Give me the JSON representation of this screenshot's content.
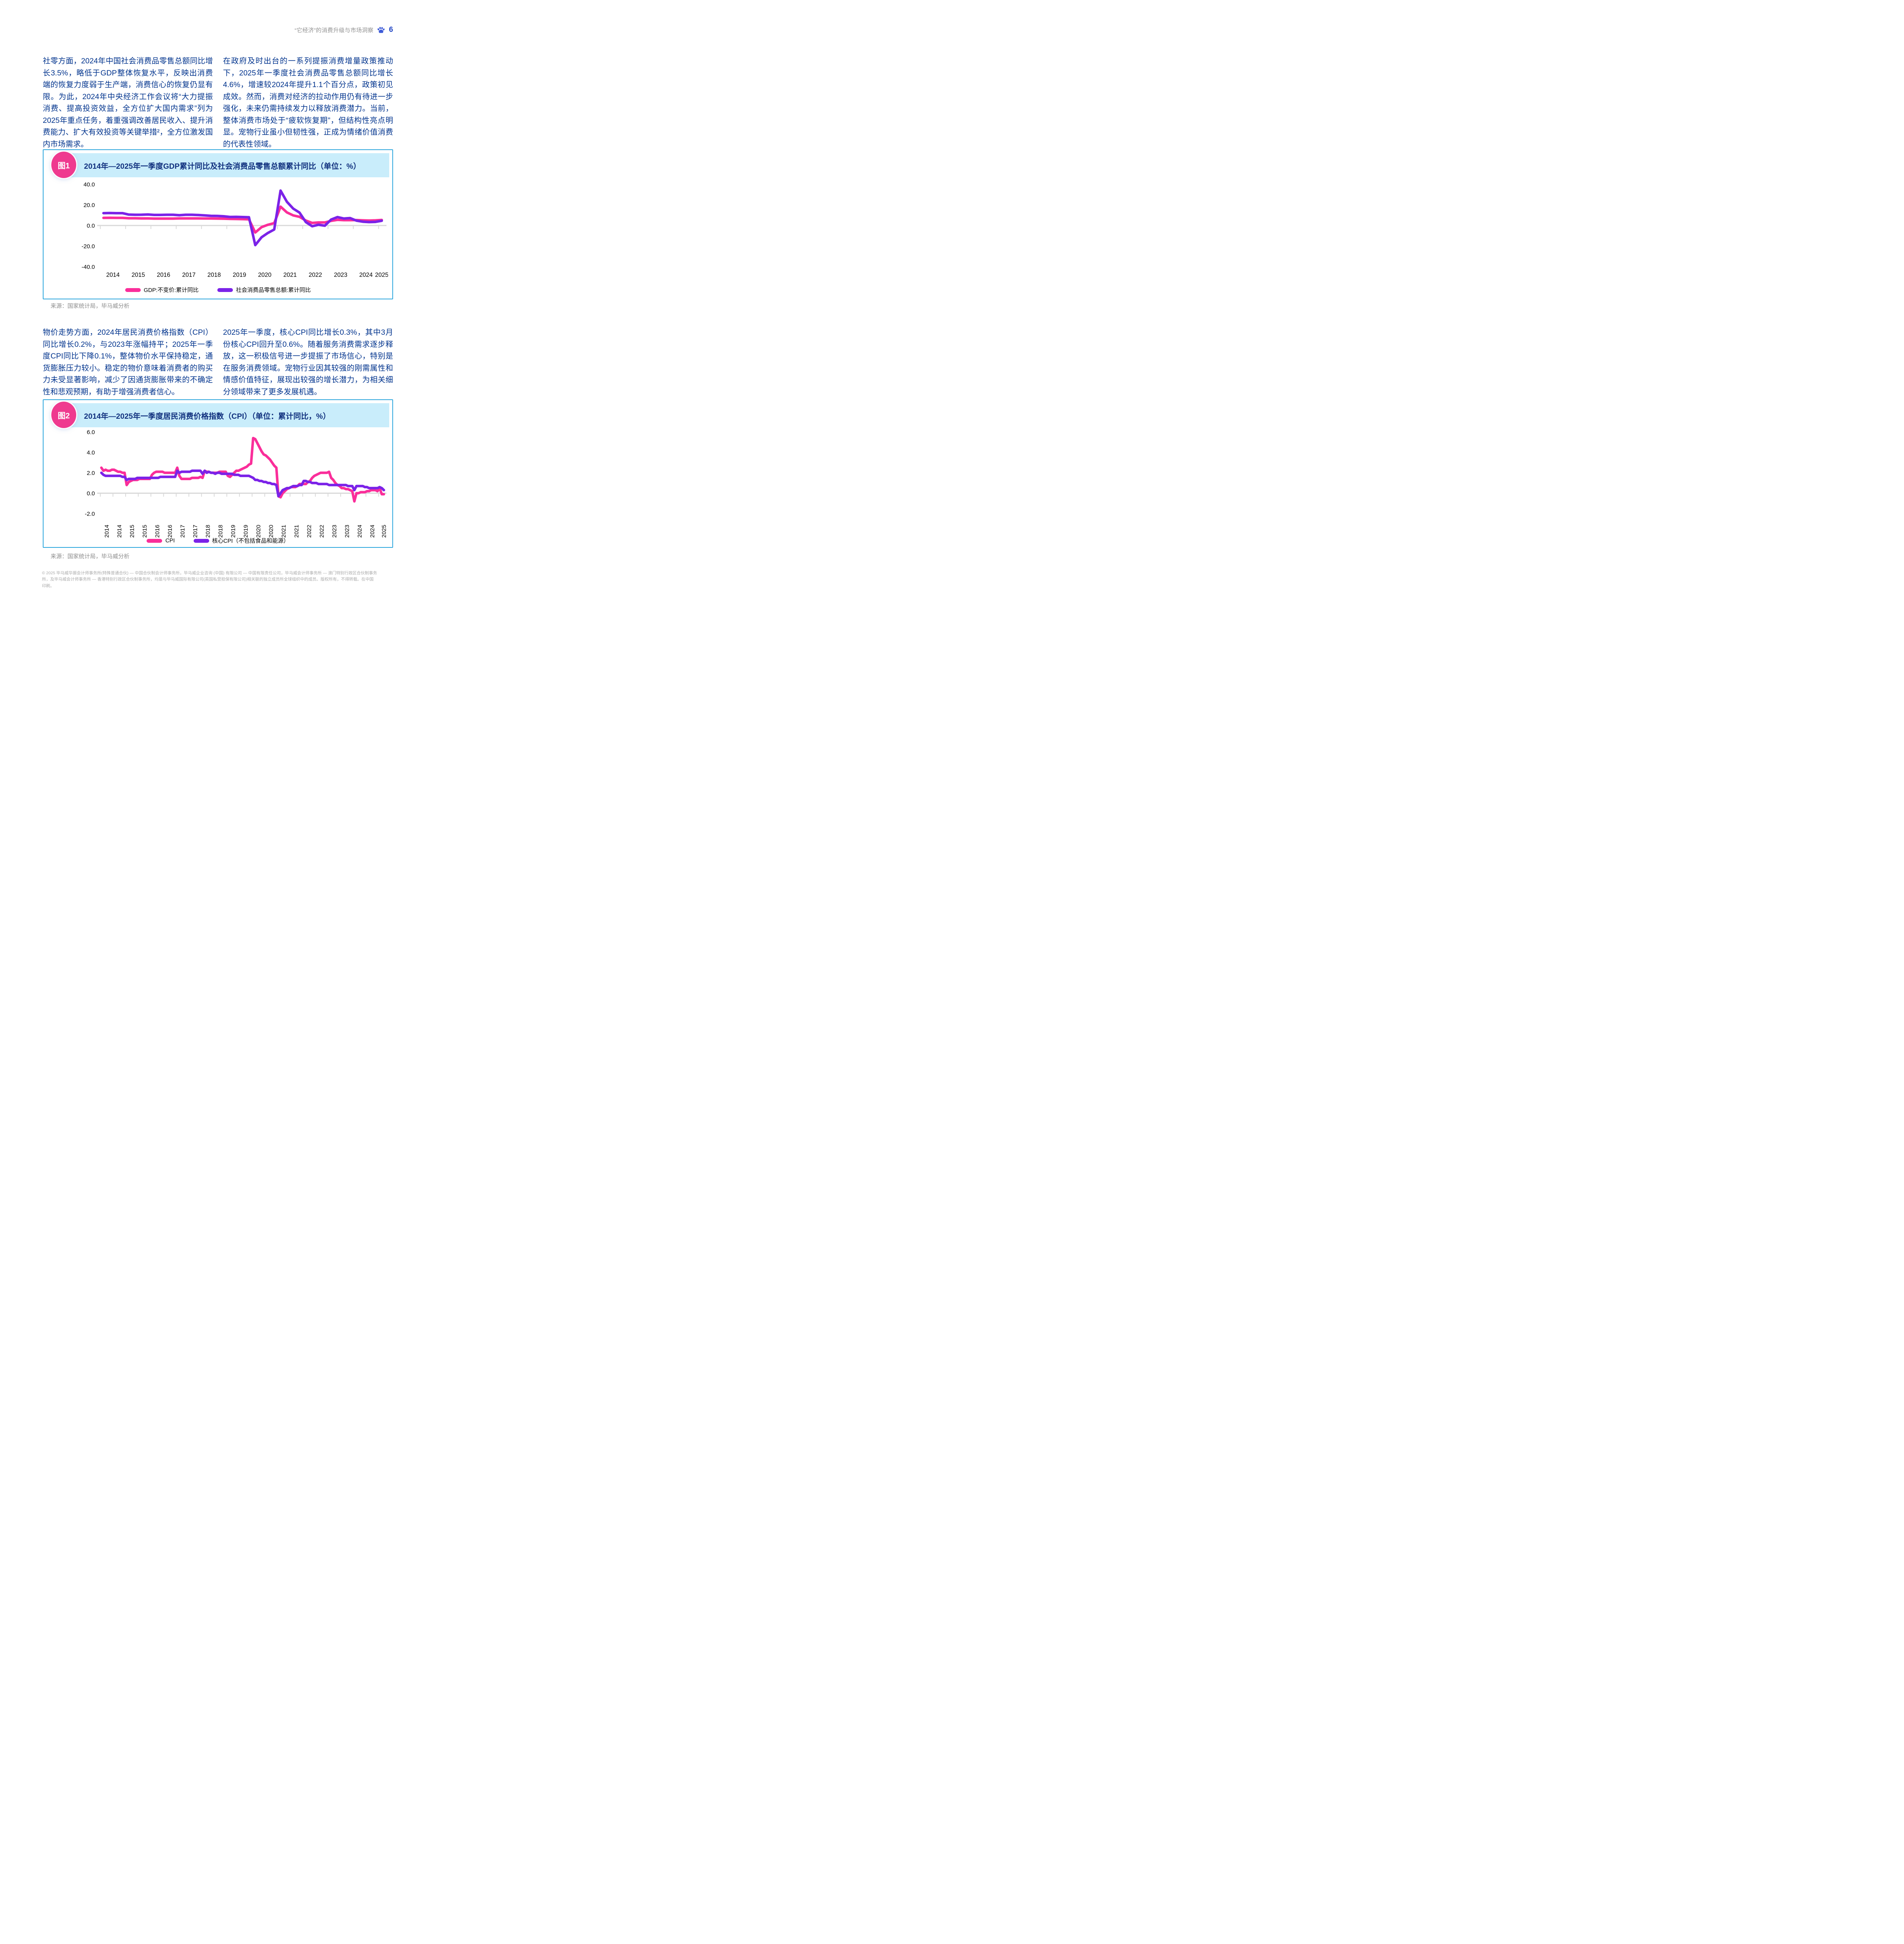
{
  "header": {
    "title": "“它经济”的消费升级与市场洞察",
    "page_number": "6"
  },
  "paragraphs": {
    "p1_left": "社零方面，2024年中国社会消费品零售总额同比增长3.5%，略低于GDP整体恢复水平，反映出消费端的恢复力度弱于生产端，消费信心的恢复仍显有限。为此，2024年中央经济工作会议将“大力提振消费、提高投资效益，全方位扩大国内需求”列为2025年重点任务，着重强调改善居民收入、提升消费能力、扩大有效投资等关键举措²，全方位激发国内市场需求。",
    "p1_right": "在政府及时出台的一系列提振消费增量政策推动下，2025年一季度社会消费品零售总额同比增长4.6%，增速较2024年提升1.1个百分点，政策初见成效。然而，消费对经济的拉动作用仍有待进一步强化，未来仍需持续发力以释放消费潜力。当前，整体消费市场处于“疲软恢复期”，但结构性亮点明显。宠物行业虽小但韧性强，正成为情绪价值消费的代表性领域。",
    "p2_left": "物价走势方面，2024年居民消费价格指数（CPI）同比增长0.2%，与2023年涨幅持平；2025年一季度CPI同比下降0.1%，整体物价水平保持稳定，通货膨胀压力较小。稳定的物价意味着消费者的购买力未受显著影响，减少了因通货膨胀带来的不确定性和悲观预期，有助于增强消费者信心。",
    "p2_right": "2025年一季度，核心CPI同比增长0.3%，其中3月份核心CPI回升至0.6%。随着服务消费需求逐步释放，这一积极信号进一步提振了市场信心，特别是在服务消费领域。宠物行业因其较强的刚需属性和情感价值特征，展现出较强的增长潜力，为相关细分领域带来了更多发展机遇。"
  },
  "figure1": {
    "badge": "图1",
    "title": "2014年—2025年一季度GDP累计同比及社会消费品零售总额累计同比（单位：%）",
    "source": "来源：国家统计局，毕马威分析"
  },
  "figure2": {
    "badge": "图2",
    "title": "2014年—2025年一季度居民消费价格指数（CPI）（单位：累计同比，%）",
    "source": "来源：国家统计局，毕马威分析"
  },
  "chart_data": [
    {
      "type": "line",
      "title": "2014年—2025年一季度GDP累计同比及社会消费品零售总额累计同比（单位：%）",
      "x_frequency": "quarterly",
      "x_range": "2014Q1-2025Q1",
      "x_labels": [
        "2014",
        "2015",
        "2016",
        "2017",
        "2018",
        "2019",
        "2020",
        "2021",
        "2022",
        "2023",
        "2024",
        "2025"
      ],
      "ylim": [
        -40,
        40
      ],
      "yticks": [
        40.0,
        20.0,
        0.0,
        -20.0,
        -40.0
      ],
      "grid": false,
      "legend_position": "bottom",
      "series": [
        {
          "name": "GDP:不变价:累计同比",
          "color": "#FA2E9A",
          "values": [
            7.4,
            7.5,
            7.4,
            7.4,
            7.0,
            7.0,
            6.9,
            6.9,
            6.7,
            6.7,
            6.7,
            6.7,
            6.9,
            6.9,
            6.9,
            6.9,
            6.8,
            6.8,
            6.7,
            6.6,
            6.4,
            6.3,
            6.2,
            6.0,
            -6.8,
            -1.6,
            0.7,
            2.3,
            18.3,
            12.7,
            9.8,
            8.4,
            4.8,
            2.5,
            3.0,
            3.0,
            4.5,
            5.5,
            5.2,
            5.2,
            5.3,
            5.0,
            4.8,
            5.0,
            5.4
          ]
        },
        {
          "name": "社会消费品零售总额:累计同比",
          "color": "#7B22E8",
          "values": [
            12.0,
            12.1,
            12.0,
            12.0,
            10.6,
            10.4,
            10.5,
            10.7,
            10.3,
            10.3,
            10.4,
            10.4,
            10.0,
            10.4,
            10.4,
            10.2,
            9.8,
            9.4,
            9.3,
            9.0,
            8.3,
            8.4,
            8.2,
            8.0,
            -19.0,
            -11.4,
            -7.2,
            -3.9,
            33.9,
            23.0,
            16.4,
            12.5,
            3.3,
            -0.7,
            0.7,
            -0.2,
            5.8,
            8.2,
            6.8,
            7.2,
            4.7,
            3.7,
            3.3,
            3.5,
            4.6
          ]
        }
      ]
    },
    {
      "type": "line",
      "title": "2014年—2025年一季度居民消费价格指数（CPI）（单位：累计同比，%）",
      "x_frequency": "monthly",
      "x_range": "2014-01 to 2025-03",
      "x_labels": [
        "2014",
        "2014",
        "2015",
        "2015",
        "2016",
        "2016",
        "2017",
        "2017",
        "2018",
        "2018",
        "2019",
        "2019",
        "2020",
        "2020",
        "2021",
        "2021",
        "2022",
        "2022",
        "2023",
        "2023",
        "2024",
        "2024",
        "2025"
      ],
      "ylim": [
        -2,
        6
      ],
      "yticks": [
        6.0,
        4.0,
        2.0,
        0.0,
        -2.0
      ],
      "grid": false,
      "legend_position": "bottom",
      "series": [
        {
          "name": "CPI",
          "color": "#FA2E9A",
          "values": [
            2.5,
            2.2,
            2.3,
            2.2,
            2.2,
            2.3,
            2.3,
            2.2,
            2.1,
            2.1,
            2.0,
            2.0,
            0.8,
            1.1,
            1.2,
            1.3,
            1.3,
            1.3,
            1.4,
            1.4,
            1.4,
            1.4,
            1.4,
            1.4,
            1.8,
            2.0,
            2.1,
            2.1,
            2.1,
            2.1,
            2.0,
            2.0,
            2.0,
            2.0,
            2.0,
            2.0,
            2.5,
            1.7,
            1.4,
            1.4,
            1.4,
            1.4,
            1.4,
            1.5,
            1.5,
            1.5,
            1.5,
            1.6,
            1.5,
            2.2,
            2.1,
            2.1,
            2.0,
            2.0,
            2.0,
            2.0,
            2.1,
            2.1,
            2.1,
            2.1,
            1.7,
            1.6,
            1.8,
            2.0,
            2.2,
            2.2,
            2.3,
            2.4,
            2.5,
            2.6,
            2.8,
            2.9,
            5.4,
            5.3,
            4.9,
            4.5,
            4.1,
            3.8,
            3.7,
            3.5,
            3.3,
            3.0,
            2.7,
            2.5,
            -0.3,
            -0.4,
            0.0,
            0.2,
            0.4,
            0.5,
            0.6,
            0.6,
            0.6,
            0.7,
            0.9,
            0.9,
            0.9,
            0.9,
            1.1,
            1.2,
            1.5,
            1.7,
            1.8,
            1.9,
            2.0,
            2.0,
            2.0,
            2.0,
            2.1,
            1.5,
            1.3,
            1.0,
            0.8,
            0.7,
            0.5,
            0.5,
            0.4,
            0.4,
            0.3,
            0.2,
            -0.8,
            0.0,
            0.0,
            0.1,
            0.1,
            0.1,
            0.2,
            0.2,
            0.3,
            0.3,
            0.3,
            0.2,
            0.5,
            -0.1,
            -0.1
          ]
        },
        {
          "name": "核心CPI（不包括食品和能源）",
          "color": "#7B22E8",
          "values": [
            2.0,
            1.8,
            1.7,
            1.7,
            1.7,
            1.7,
            1.7,
            1.7,
            1.7,
            1.7,
            1.6,
            1.6,
            1.3,
            1.4,
            1.4,
            1.4,
            1.4,
            1.5,
            1.5,
            1.5,
            1.5,
            1.5,
            1.5,
            1.5,
            1.5,
            1.5,
            1.5,
            1.5,
            1.6,
            1.6,
            1.6,
            1.6,
            1.6,
            1.6,
            1.6,
            1.6,
            2.2,
            2.0,
            2.1,
            2.1,
            2.1,
            2.1,
            2.1,
            2.2,
            2.2,
            2.2,
            2.2,
            2.2,
            1.9,
            2.2,
            2.0,
            2.1,
            2.0,
            2.0,
            1.9,
            2.0,
            2.0,
            1.9,
            1.9,
            1.9,
            1.9,
            1.9,
            1.9,
            1.8,
            1.8,
            1.8,
            1.7,
            1.7,
            1.7,
            1.7,
            1.7,
            1.6,
            1.5,
            1.3,
            1.3,
            1.2,
            1.2,
            1.1,
            1.1,
            1.0,
            1.0,
            0.9,
            0.9,
            0.8,
            -0.3,
            0.0,
            0.3,
            0.4,
            0.5,
            0.5,
            0.6,
            0.7,
            0.7,
            0.7,
            0.8,
            0.8,
            1.2,
            1.2,
            1.1,
            1.1,
            1.0,
            1.0,
            1.0,
            0.9,
            0.9,
            0.9,
            0.9,
            0.9,
            0.8,
            0.8,
            0.8,
            0.8,
            0.8,
            0.8,
            0.8,
            0.8,
            0.8,
            0.7,
            0.7,
            0.7,
            0.3,
            0.7,
            0.7,
            0.7,
            0.7,
            0.6,
            0.6,
            0.5,
            0.5,
            0.5,
            0.5,
            0.5,
            0.6,
            0.5,
            0.3
          ]
        }
      ]
    }
  ],
  "footer": {
    "line1": "© 2025 毕马威华振会计师事务所(特殊普通合伙) — 中国合伙制会计师事务所，毕马威企业咨询 (中国) 有限公司 — 中国有限责任公司，毕马威会计师事务所 — 澳门特别行政区合伙制事务",
    "line2": "所，及毕马威会计师事务所 — 香港特别行政区合伙制事务所，均是与毕马威国际有限公司(英国私营担保有限公司)相关联的独立成员所全球组织中的成员。版权所有，不得转载。在中国",
    "line3": "印刷。"
  },
  "colors": {
    "body_text": "#00338D",
    "figure_title": "#10307E",
    "badge_pink": "#EF3A8F",
    "line_pink": "#FA2E9A",
    "line_purple": "#7B22E8",
    "band_blue": "#C9EDFB",
    "card_border": "#2EA7DD",
    "zero_axis_gray": "#D9D9D9",
    "source_gray": "#8C8C8C",
    "footer_gray": "#ABABAB"
  }
}
